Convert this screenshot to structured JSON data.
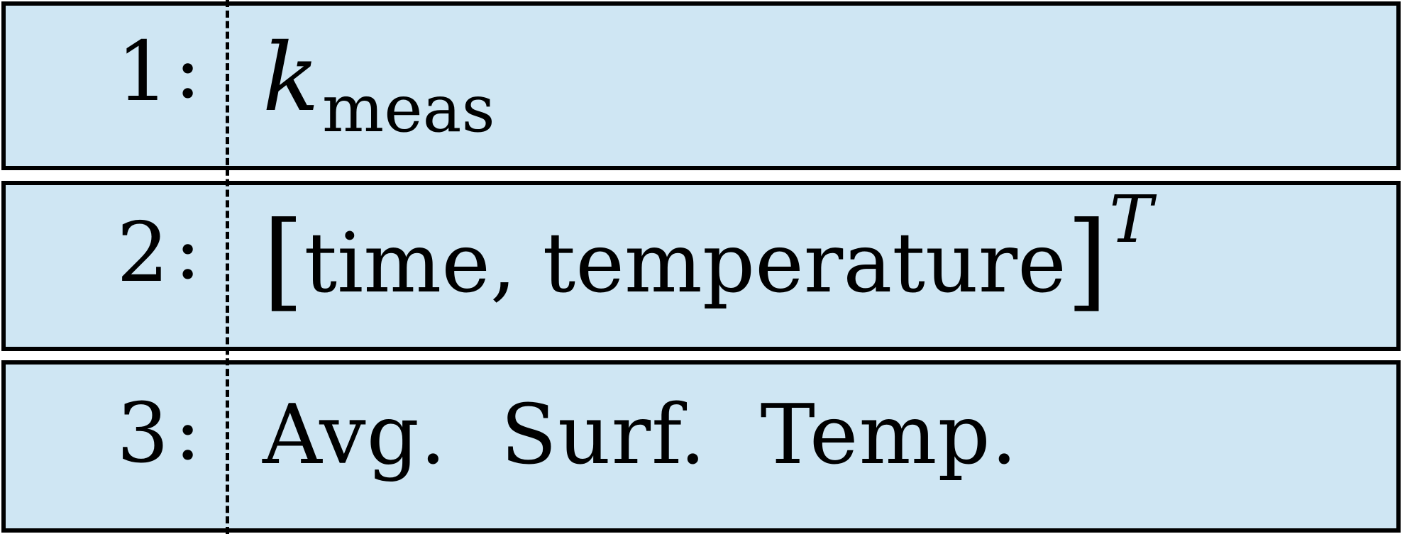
{
  "rows": [
    {
      "index": "1",
      "separator": ":",
      "symbol": "k",
      "subscript": "meas"
    },
    {
      "index": "2",
      "separator": ":",
      "open_bracket": "[",
      "text": "time, temperature",
      "close_bracket": "]",
      "superscript": "T"
    },
    {
      "index": "3",
      "separator": ":",
      "text": "Avg.  Surf.  Temp."
    }
  ],
  "colors": {
    "row_fill": "#cfe6f3",
    "border": "#000000"
  }
}
